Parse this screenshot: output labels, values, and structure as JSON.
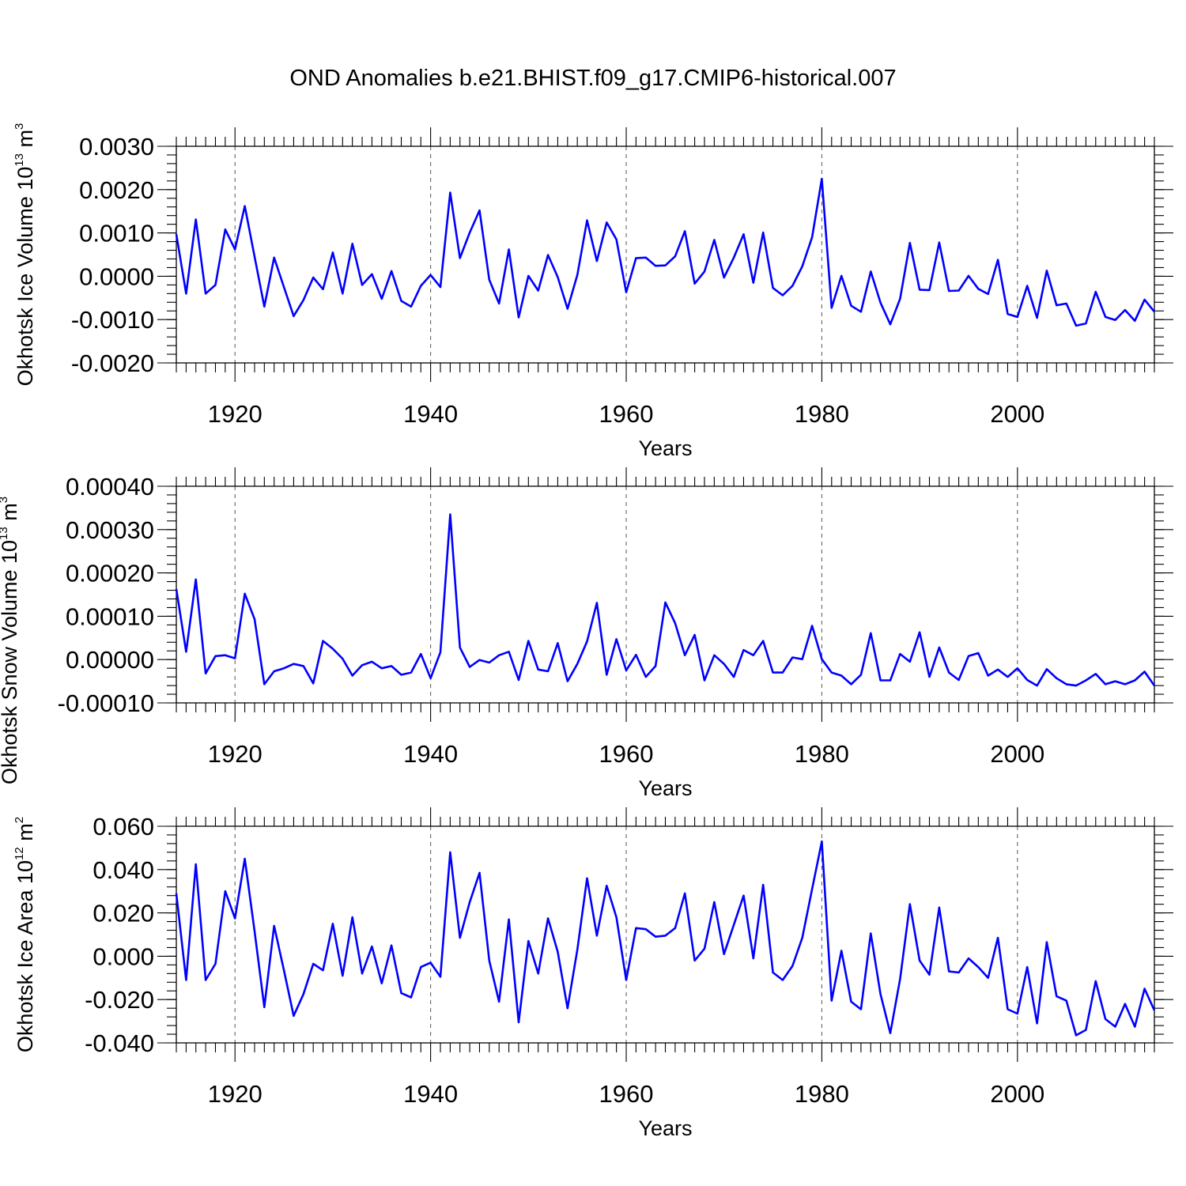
{
  "colors": {
    "series": "#0000ff",
    "axes": "#000000",
    "grid": "#666666"
  },
  "chart_data": {
    "type": "line",
    "title": "OND Anomalies b.e21.BHIST.f09_g17.CMIP6-historical.007",
    "years": [
      1914,
      1915,
      1916,
      1917,
      1918,
      1919,
      1920,
      1921,
      1922,
      1923,
      1924,
      1925,
      1926,
      1927,
      1928,
      1929,
      1930,
      1931,
      1932,
      1933,
      1934,
      1935,
      1936,
      1937,
      1938,
      1939,
      1940,
      1941,
      1942,
      1943,
      1944,
      1945,
      1946,
      1947,
      1948,
      1949,
      1950,
      1951,
      1952,
      1953,
      1954,
      1955,
      1956,
      1957,
      1958,
      1959,
      1960,
      1961,
      1962,
      1963,
      1964,
      1965,
      1966,
      1967,
      1968,
      1969,
      1970,
      1971,
      1972,
      1973,
      1974,
      1975,
      1976,
      1977,
      1978,
      1979,
      1980,
      1981,
      1982,
      1983,
      1984,
      1985,
      1986,
      1987,
      1988,
      1989,
      1990,
      1991,
      1992,
      1993,
      1994,
      1995,
      1996,
      1997,
      1998,
      1999,
      2000,
      2001,
      2002,
      2003,
      2004,
      2005,
      2006,
      2007,
      2008,
      2009,
      2010,
      2011,
      2012,
      2013,
      2014
    ],
    "xlim": [
      1914,
      2014
    ],
    "xticks": [
      "1920",
      "1940",
      "1960",
      "1980",
      "2000"
    ],
    "grid_x": [
      1920,
      1940,
      1960,
      1980,
      2000
    ],
    "panels": [
      {
        "name": "ice-volume",
        "ylabel": "Okhotsk Ice Volume 10",
        "ylabel_exp": "13",
        "ylabel_unit": " m",
        "ylabel_unit_exp": "3",
        "xlabel": "Years",
        "ylim": [
          -0.002,
          0.003
        ],
        "yticks": [
          "0.0030",
          "0.0020",
          "0.0010",
          "0.0000",
          "-0.0010",
          "-0.0020"
        ],
        "ytick_values": [
          0.003,
          0.002,
          0.001,
          0.0,
          -0.001,
          -0.002
        ],
        "minor_step": 0.0002,
        "values": [
          0.00097,
          -0.0004,
          0.00131,
          -0.0004,
          -0.0002,
          0.00108,
          0.00062,
          0.00162,
          0.00045,
          -0.0007,
          0.00043,
          -0.00025,
          -0.00092,
          -0.00055,
          -3e-05,
          -0.0003,
          0.00055,
          -0.0004,
          0.00075,
          -0.0002,
          5e-05,
          -0.00052,
          0.00012,
          -0.00057,
          -0.0007,
          -0.00022,
          3e-05,
          -0.00025,
          0.00193,
          0.00042,
          0.00101,
          0.00152,
          -8e-05,
          -0.00063,
          0.00062,
          -0.00095,
          1e-05,
          -0.00033,
          0.00049,
          -2e-05,
          -0.00075,
          3e-05,
          0.00129,
          0.00035,
          0.00124,
          0.00085,
          -0.00037,
          0.00042,
          0.00043,
          0.00024,
          0.00025,
          0.00046,
          0.00104,
          -0.00017,
          0.00011,
          0.00084,
          -3e-05,
          0.00043,
          0.00097,
          -0.00015,
          0.00101,
          -0.00027,
          -0.00044,
          -0.00022,
          0.00023,
          0.0009,
          0.00225,
          -0.00073,
          1e-05,
          -0.00068,
          -0.00082,
          0.00011,
          -0.00061,
          -0.00111,
          -0.00052,
          0.00077,
          -0.00031,
          -0.00032,
          0.00078,
          -0.00034,
          -0.00033,
          1e-05,
          -0.00029,
          -0.00041,
          0.00038,
          -0.00087,
          -0.00094,
          -0.00022,
          -0.00096,
          0.00013,
          -0.00067,
          -0.00063,
          -0.00114,
          -0.00109,
          -0.00036,
          -0.00094,
          -0.00101,
          -0.00078,
          -0.00103,
          -0.00054,
          -0.00082
        ]
      },
      {
        "name": "snow-volume",
        "ylabel": "Okhotsk Snow Volume 10",
        "ylabel_exp": "13",
        "ylabel_unit": " m",
        "ylabel_unit_exp": "3",
        "xlabel": "Years",
        "ylim": [
          -0.0001,
          0.0004
        ],
        "yticks": [
          "0.00040",
          "0.00030",
          "0.00020",
          "0.00010",
          "0.00000",
          "-0.00010"
        ],
        "ytick_values": [
          0.0004,
          0.0003,
          0.0002,
          0.0001,
          0.0,
          -0.0001
        ],
        "minor_step": 2e-05,
        "values": [
          0.000163,
          1.8e-05,
          0.000185,
          -3.2e-05,
          8e-06,
          1e-05,
          3e-06,
          0.000152,
          9.3e-05,
          -5.7e-05,
          -2.7e-05,
          -2e-05,
          -1e-05,
          -1.5e-05,
          -5.5e-05,
          4.3e-05,
          2.5e-05,
          2e-06,
          -3.7e-05,
          -1.3e-05,
          -5e-06,
          -2e-05,
          -1.5e-05,
          -3.5e-05,
          -3e-05,
          1.3e-05,
          -4.3e-05,
          1.7e-05,
          0.000335,
          2.8e-05,
          -1.7e-05,
          -1e-06,
          -7e-06,
          1e-05,
          1.8e-05,
          -4.7e-05,
          4.3e-05,
          -2.3e-05,
          -2.7e-05,
          3.8e-05,
          -5e-05,
          -1e-05,
          4.2e-05,
          0.000131,
          -3.5e-05,
          4.7e-05,
          -2.5e-05,
          1.1e-05,
          -4e-05,
          -1.5e-05,
          0.000132,
          8.4e-05,
          1e-05,
          5.7e-05,
          -4.8e-05,
          1e-05,
          -1e-05,
          -4e-05,
          2.2e-05,
          1e-05,
          4.3e-05,
          -3e-05,
          -3e-05,
          5e-06,
          1e-06,
          7.8e-05,
          1e-06,
          -3e-05,
          -3.7e-05,
          -5.7e-05,
          -3.5e-05,
          6.1e-05,
          -4.8e-05,
          -4.8e-05,
          1.3e-05,
          -5e-06,
          6.3e-05,
          -4e-05,
          2.8e-05,
          -3e-05,
          -4.7e-05,
          8e-06,
          1.5e-05,
          -3.7e-05,
          -2.3e-05,
          -4e-05,
          -2e-05,
          -4.7e-05,
          -6e-05,
          -2.2e-05,
          -4.3e-05,
          -5.7e-05,
          -6e-05,
          -4.8e-05,
          -3.3e-05,
          -5.7e-05,
          -5e-05,
          -5.7e-05,
          -4.8e-05,
          -2.8e-05,
          -6e-05
        ]
      },
      {
        "name": "ice-area",
        "ylabel": "Okhotsk Ice Area 10",
        "ylabel_exp": "12",
        "ylabel_unit": " m",
        "ylabel_unit_exp": "2",
        "xlabel": "Years",
        "ylim": [
          -0.04,
          0.06
        ],
        "yticks": [
          "0.060",
          "0.040",
          "0.020",
          "0.000",
          "-0.020",
          "-0.040"
        ],
        "ytick_values": [
          0.06,
          0.04,
          0.02,
          0.0,
          -0.02,
          -0.04
        ],
        "minor_step": 0.004,
        "values": [
          0.029,
          -0.011,
          0.0425,
          -0.011,
          -0.0035,
          0.03,
          0.0175,
          0.045,
          0.0115,
          -0.0235,
          0.014,
          -0.0065,
          -0.0275,
          -0.0175,
          -0.0035,
          -0.0065,
          0.015,
          -0.009,
          0.018,
          -0.008,
          0.0045,
          -0.0125,
          0.005,
          -0.017,
          -0.019,
          -0.005,
          -0.003,
          -0.0095,
          0.048,
          0.0085,
          0.025,
          0.0385,
          -0.002,
          -0.021,
          0.017,
          -0.0305,
          0.007,
          -0.008,
          0.0175,
          0.002,
          -0.024,
          0.003,
          0.036,
          0.0095,
          0.0325,
          0.018,
          -0.011,
          0.013,
          0.0125,
          0.009,
          0.0095,
          0.013,
          0.029,
          -0.002,
          0.0035,
          0.025,
          0.001,
          0.0145,
          0.028,
          -0.001,
          0.033,
          -0.0075,
          -0.011,
          -0.0045,
          0.0085,
          0.031,
          0.053,
          -0.0205,
          0.0025,
          -0.021,
          -0.0245,
          0.0105,
          -0.0175,
          -0.0355,
          -0.0105,
          0.024,
          -0.002,
          -0.0085,
          0.0225,
          -0.007,
          -0.0075,
          -0.001,
          -0.005,
          -0.01,
          0.0085,
          -0.0245,
          -0.0265,
          -0.005,
          -0.031,
          0.0065,
          -0.0185,
          -0.0205,
          -0.0365,
          -0.034,
          -0.0115,
          -0.029,
          -0.0325,
          -0.022,
          -0.0325,
          -0.015,
          -0.025
        ]
      }
    ]
  }
}
